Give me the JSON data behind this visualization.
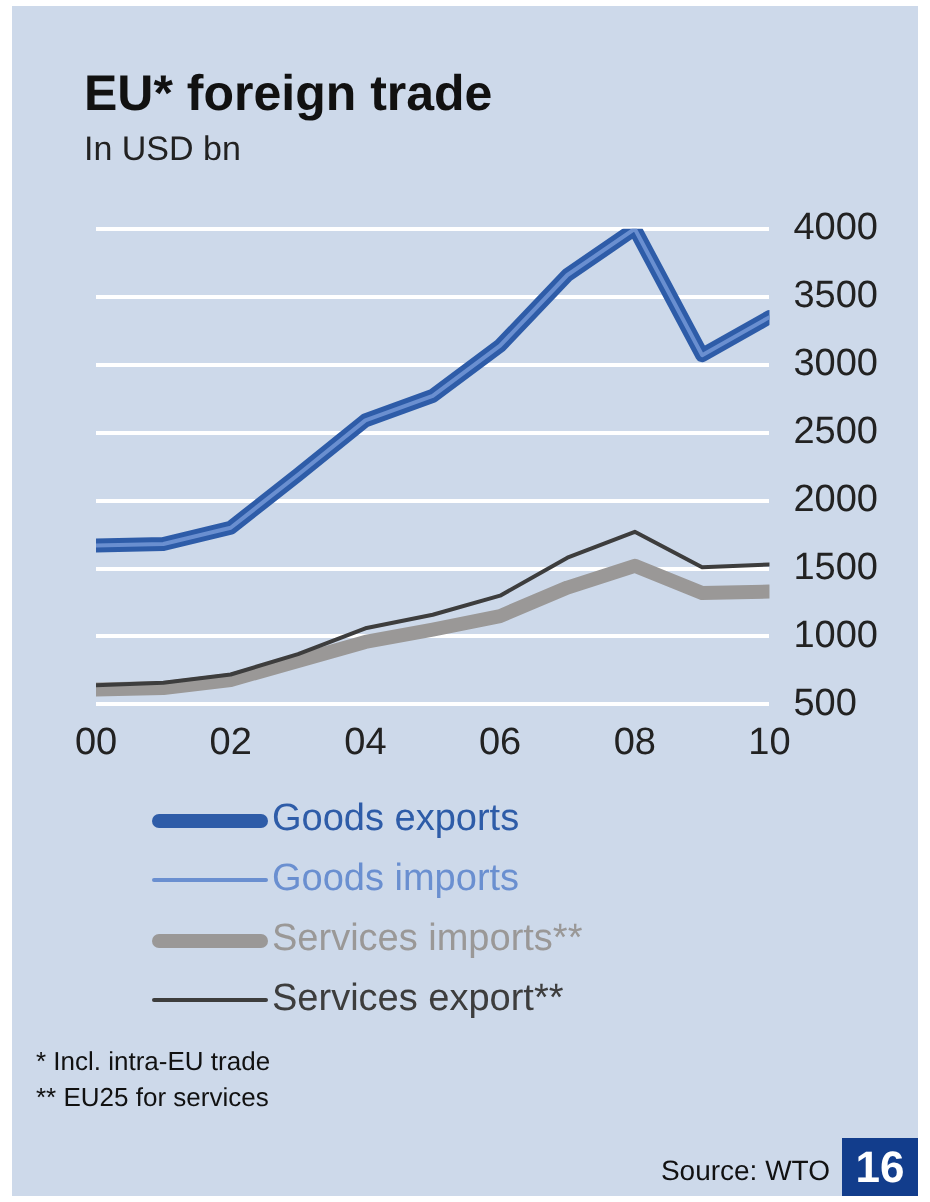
{
  "chart_data": {
    "type": "line",
    "title": "EU* foreign trade",
    "subtitle": "In USD bn",
    "x": [
      2000,
      2001,
      2002,
      2003,
      2004,
      2005,
      2006,
      2007,
      2008,
      2009,
      2010
    ],
    "series": [
      {
        "name": "Goods exports",
        "color": "#2e5ca8",
        "values": [
          1670,
          1680,
          1800,
          2190,
          2590,
          2770,
          3140,
          3660,
          4000,
          3070,
          3350
        ]
      },
      {
        "name": "Goods imports",
        "color": "#6a8fd0",
        "values": [
          1670,
          1680,
          1800,
          2190,
          2590,
          2770,
          3140,
          3660,
          4000,
          3070,
          3350
        ]
      },
      {
        "name": "Services imports**",
        "color": "#9a9897",
        "values": [
          610,
          620,
          680,
          820,
          960,
          1050,
          1150,
          1360,
          1520,
          1320,
          1330
        ]
      },
      {
        "name": "Services export**",
        "color": "#3d3d3d",
        "values": [
          640,
          660,
          720,
          870,
          1060,
          1160,
          1300,
          1580,
          1770,
          1510,
          1530
        ]
      }
    ],
    "xlim": [
      2000,
      2010
    ],
    "xticks": [
      {
        "value": 2000,
        "label": "00"
      },
      {
        "value": 2002,
        "label": "02"
      },
      {
        "value": 2004,
        "label": "04"
      },
      {
        "value": 2006,
        "label": "06"
      },
      {
        "value": 2008,
        "label": "08"
      },
      {
        "value": 2010,
        "label": "10"
      }
    ],
    "ylim": [
      500,
      4000
    ],
    "yticks": [
      500,
      1000,
      1500,
      2000,
      2500,
      3000,
      3500,
      4000
    ],
    "grid": "y",
    "legend": "bottom",
    "marker": "none",
    "line_style": "solid",
    "annotations": [
      "* Incl. intra-EU trade",
      "** EU25 for services",
      "Source: WTO",
      "16"
    ]
  }
}
